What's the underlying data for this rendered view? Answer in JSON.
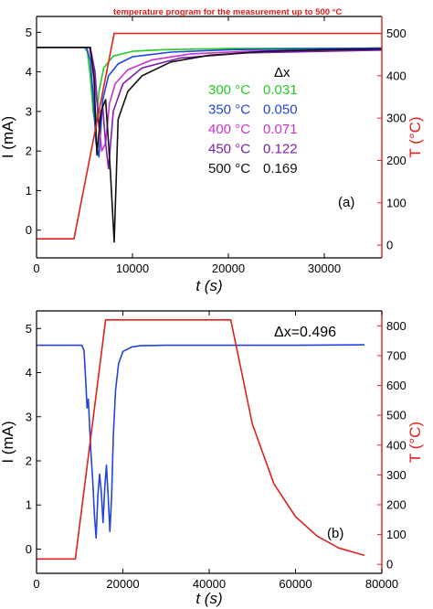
{
  "chart_data": [
    {
      "type": "line",
      "panel_label": "(a)",
      "annotation": "temperature program for the measurement up to 500 °C",
      "xlabel": "t (s)",
      "ylabel_left": "I (mA)",
      "ylabel_right": "T (°C)",
      "xlim": [
        0,
        36000
      ],
      "ylim_left": [
        -0.7,
        5.4
      ],
      "ylim_right": [
        -30,
        540
      ],
      "xticks": [
        "0",
        "10000",
        "20000",
        "30000"
      ],
      "yticks_left": [
        "0",
        "1",
        "2",
        "3",
        "4",
        "5"
      ],
      "yticks_right": [
        "0",
        "100",
        "200",
        "300",
        "400",
        "500"
      ],
      "legend_header": "Δx",
      "legend": [
        {
          "temp": "300 °C",
          "dx": "0.031",
          "color": "#22cc22"
        },
        {
          "temp": "350 °C",
          "dx": "0.050",
          "color": "#2244dd"
        },
        {
          "temp": "400 °C",
          "dx": "0.071",
          "color": "#cc33cc"
        },
        {
          "temp": "450 °C",
          "dx": "0.122",
          "color": "#7a1fb0"
        },
        {
          "temp": "500 °C",
          "dx": "0.169",
          "color": "#111111"
        }
      ],
      "series": [
        {
          "name": "300 °C",
          "axis": "left",
          "color": "#22cc22",
          "x": [
            0,
            5000,
            5300,
            5600,
            5900,
            6200,
            6500,
            7000,
            8000,
            10000,
            13000,
            20000,
            36000
          ],
          "y": [
            4.62,
            4.62,
            4.5,
            3.9,
            3.0,
            2.55,
            3.5,
            4.1,
            4.4,
            4.52,
            4.56,
            4.59,
            4.6
          ]
        },
        {
          "name": "350 °C",
          "axis": "left",
          "color": "#2244dd",
          "x": [
            0,
            5200,
            5600,
            5900,
            6200,
            6500,
            6900,
            7500,
            8500,
            10000,
            14000,
            20000,
            36000
          ],
          "y": [
            4.62,
            4.62,
            4.3,
            3.4,
            2.2,
            1.85,
            3.3,
            3.9,
            4.2,
            4.38,
            4.5,
            4.56,
            4.6
          ]
        },
        {
          "name": "400 °C",
          "axis": "left",
          "color": "#cc33cc",
          "x": [
            0,
            5500,
            6000,
            6400,
            6800,
            7200,
            7600,
            8200,
            9500,
            12000,
            16000,
            22000,
            36000
          ],
          "y": [
            4.62,
            4.62,
            4.0,
            3.0,
            2.0,
            2.2,
            3.2,
            3.7,
            4.05,
            4.3,
            4.45,
            4.52,
            4.57
          ]
        },
        {
          "name": "450 °C",
          "axis": "left",
          "color": "#7a1fb0",
          "x": [
            0,
            5600,
            6100,
            6500,
            6900,
            7200,
            7500,
            8000,
            9000,
            11000,
            15000,
            22000,
            36000
          ],
          "y": [
            4.62,
            4.62,
            4.0,
            2.6,
            3.1,
            2.2,
            1.55,
            3.0,
            3.7,
            4.1,
            4.35,
            4.48,
            4.55
          ]
        },
        {
          "name": "500 °C",
          "axis": "left",
          "color": "#111111",
          "x": [
            0,
            5600,
            6000,
            6300,
            6700,
            7200,
            7700,
            8100,
            8500,
            9500,
            11000,
            14000,
            18000,
            24000,
            30000,
            36000
          ],
          "y": [
            4.62,
            4.62,
            3.8,
            1.9,
            3.0,
            3.3,
            1.5,
            -0.3,
            2.8,
            3.5,
            3.9,
            4.25,
            4.42,
            4.52,
            4.56,
            4.58
          ]
        },
        {
          "name": "temperature program",
          "axis": "right",
          "color": "#e0201c",
          "x": [
            0,
            3900,
            8100,
            36000
          ],
          "y": [
            15,
            15,
            500,
            500
          ]
        }
      ]
    },
    {
      "type": "line",
      "panel_label": "(b)",
      "annotation": "Δx=0.496",
      "xlabel": "t (s)",
      "ylabel_left": "I (mA)",
      "ylabel_right": "T (°C)",
      "xlim": [
        0,
        80000
      ],
      "ylim_left": [
        -0.55,
        5.4
      ],
      "ylim_right": [
        -30,
        850
      ],
      "xticks": [
        "0",
        "20000",
        "40000",
        "60000",
        "80000"
      ],
      "yticks_left": [
        "0",
        "1",
        "2",
        "3",
        "4",
        "5"
      ],
      "yticks_right": [
        "0",
        "100",
        "200",
        "300",
        "400",
        "500",
        "600",
        "700",
        "800"
      ],
      "series": [
        {
          "name": "current",
          "axis": "left",
          "color": "#2244dd",
          "x": [
            0,
            10500,
            11000,
            11400,
            11700,
            12000,
            12300,
            12600,
            13000,
            13400,
            13800,
            14200,
            14600,
            15000,
            15400,
            15800,
            16200,
            16600,
            17000,
            17400,
            17800,
            18300,
            19000,
            20000,
            22000,
            24000,
            30000,
            40000,
            50000,
            60000,
            76000
          ],
          "y": [
            4.62,
            4.62,
            4.5,
            3.8,
            3.2,
            3.4,
            2.8,
            2.2,
            1.6,
            0.8,
            0.25,
            1.2,
            1.7,
            1.3,
            0.6,
            1.4,
            1.9,
            1.2,
            0.4,
            1.2,
            2.6,
            3.6,
            4.2,
            4.48,
            4.58,
            4.61,
            4.62,
            4.62,
            4.62,
            4.62,
            4.63
          ]
        },
        {
          "name": "temperature",
          "axis": "right",
          "color": "#e0201c",
          "x": [
            0,
            9000,
            16000,
            45000,
            47000,
            50000,
            55000,
            60000,
            65000,
            70000,
            76000
          ],
          "y": [
            18,
            18,
            820,
            820,
            680,
            470,
            270,
            160,
            95,
            55,
            30
          ]
        }
      ]
    }
  ]
}
